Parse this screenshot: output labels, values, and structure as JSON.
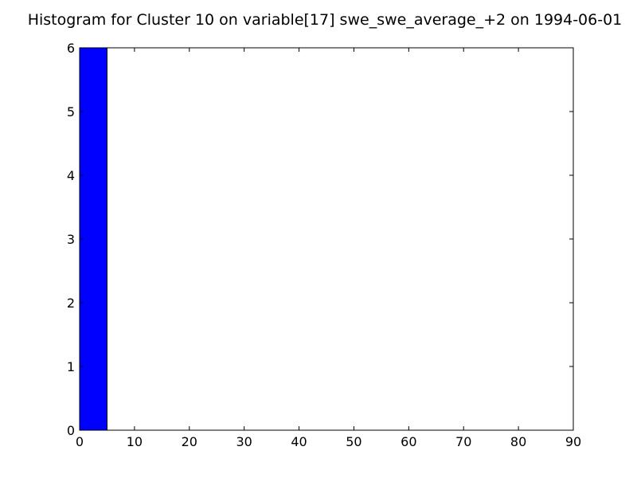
{
  "chart_data": {
    "type": "bar",
    "title": "Histogram for Cluster 10 on variable[17] swe_swe_average_+2 on 1994-06-01",
    "xlabel": "",
    "ylabel": "",
    "xlim": [
      0,
      90
    ],
    "ylim": [
      0,
      6
    ],
    "xticks": [
      0,
      10,
      20,
      30,
      40,
      50,
      60,
      70,
      80,
      90
    ],
    "yticks": [
      0,
      1,
      2,
      3,
      4,
      5,
      6
    ],
    "bins": [
      {
        "x0": 0,
        "x1": 5,
        "count": 6
      }
    ],
    "bar_color": "#0000ff",
    "grid": false,
    "legend": "none"
  }
}
